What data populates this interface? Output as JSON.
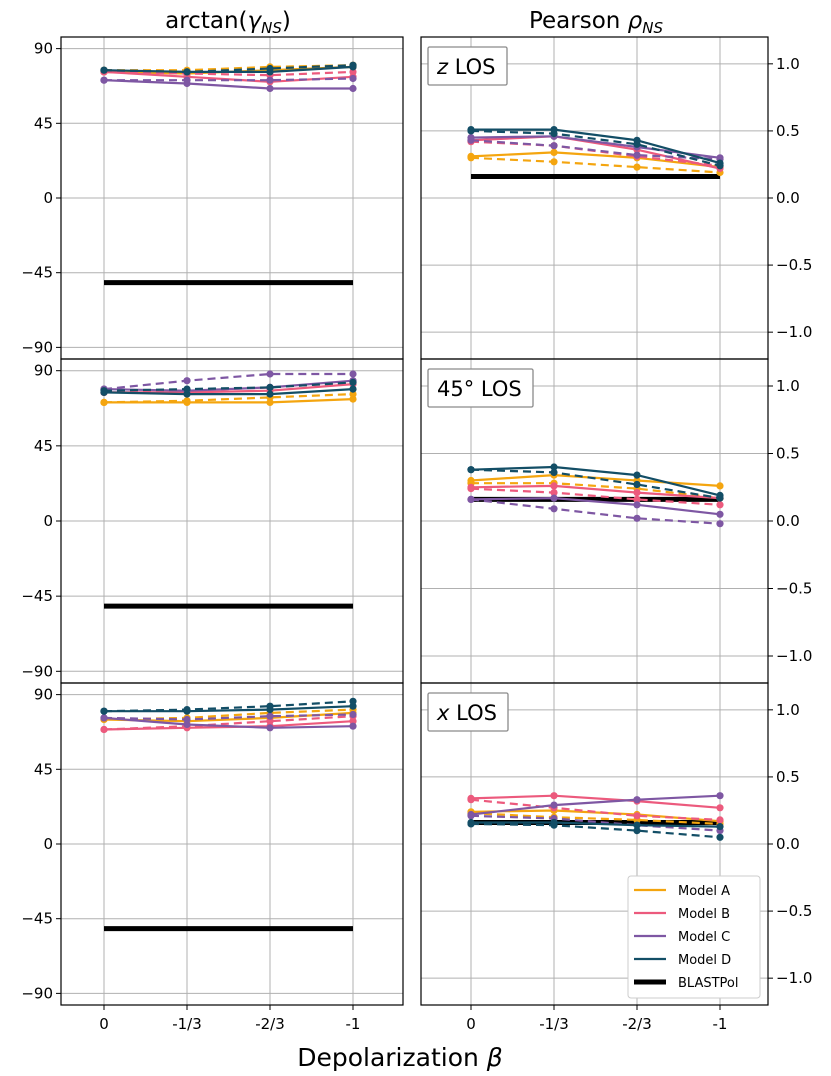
{
  "column_titles": [
    "arctan(γ_NS)",
    "Pearson ρ_NS"
  ],
  "x_axis_title": "Depolarization β",
  "x_tick_labels": [
    "0",
    "-1/3",
    "-2/3",
    "-1"
  ],
  "legend": [
    {
      "label": "Model A",
      "color": "#f4a50f"
    },
    {
      "label": "Model B",
      "color": "#ec5a7d"
    },
    {
      "label": "Model C",
      "color": "#7e57a3"
    },
    {
      "label": "Model D",
      "color": "#134e66"
    },
    {
      "label": "BLASTPol",
      "color": "#000000"
    }
  ],
  "chart_data": [
    {
      "type": "line",
      "title": "arctan(γ_NS)",
      "los": "z LOS",
      "x": [
        "0",
        "-1/3",
        "-2/3",
        "-1"
      ],
      "ylim": [
        -97,
        97
      ],
      "yticks": [
        -90,
        -45,
        0,
        45,
        90
      ],
      "ytick_labels": [
        "−90",
        "−45",
        "0",
        "45",
        "90"
      ],
      "grid": true,
      "blastpol": -51,
      "series": [
        {
          "name": "Model A",
          "style": "solid",
          "values": [
            76,
            75,
            77,
            79
          ]
        },
        {
          "name": "Model A",
          "style": "dashed",
          "values": [
            77,
            77,
            79,
            80
          ]
        },
        {
          "name": "Model B",
          "style": "solid",
          "values": [
            76,
            73,
            70,
            73
          ]
        },
        {
          "name": "Model B",
          "style": "dashed",
          "values": [
            76,
            75,
            74,
            76
          ]
        },
        {
          "name": "Model C",
          "style": "solid",
          "values": [
            71,
            69,
            66,
            66
          ]
        },
        {
          "name": "Model C",
          "style": "dashed",
          "values": [
            71,
            71,
            71,
            72
          ]
        },
        {
          "name": "Model D",
          "style": "solid",
          "values": [
            77,
            76,
            76,
            79
          ]
        },
        {
          "name": "Model D",
          "style": "dashed",
          "values": [
            77,
            76,
            78,
            80
          ]
        }
      ]
    },
    {
      "type": "line",
      "title": "Pearson ρ_NS",
      "los": "z LOS",
      "x": [
        "0",
        "-1/3",
        "-2/3",
        "-1"
      ],
      "ylim": [
        -1.2,
        1.2
      ],
      "yticks": [
        -1.0,
        -0.5,
        0.0,
        0.5,
        1.0
      ],
      "ytick_labels": [
        "−1.0",
        "−0.5",
        "0.0",
        "0.5",
        "1.0"
      ],
      "grid": true,
      "blastpol": 0.16,
      "series": [
        {
          "name": "Model A",
          "style": "solid",
          "values": [
            0.31,
            0.34,
            0.3,
            0.23
          ]
        },
        {
          "name": "Model A",
          "style": "dashed",
          "values": [
            0.3,
            0.27,
            0.23,
            0.19
          ]
        },
        {
          "name": "Model B",
          "style": "solid",
          "values": [
            0.43,
            0.46,
            0.36,
            0.22
          ]
        },
        {
          "name": "Model B",
          "style": "dashed",
          "values": [
            0.42,
            0.39,
            0.31,
            0.24
          ]
        },
        {
          "name": "Model C",
          "style": "solid",
          "values": [
            0.45,
            0.46,
            0.38,
            0.3
          ]
        },
        {
          "name": "Model C",
          "style": "dashed",
          "values": [
            0.43,
            0.39,
            0.32,
            0.29
          ]
        },
        {
          "name": "Model D",
          "style": "solid",
          "values": [
            0.51,
            0.51,
            0.43,
            0.26
          ]
        },
        {
          "name": "Model D",
          "style": "dashed",
          "values": [
            0.5,
            0.48,
            0.4,
            0.24
          ]
        }
      ]
    },
    {
      "type": "line",
      "title": "arctan(γ_NS)",
      "los": "45° LOS",
      "x": [
        "0",
        "-1/3",
        "-2/3",
        "-1"
      ],
      "ylim": [
        -97,
        97
      ],
      "yticks": [
        -90,
        -45,
        0,
        45,
        90
      ],
      "ytick_labels": [
        "−90",
        "−45",
        "0",
        "45",
        "90"
      ],
      "grid": true,
      "blastpol": -51,
      "series": [
        {
          "name": "Model A",
          "style": "solid",
          "values": [
            71,
            71,
            71,
            73
          ]
        },
        {
          "name": "Model A",
          "style": "dashed",
          "values": [
            71,
            72,
            74,
            76
          ]
        },
        {
          "name": "Model B",
          "style": "solid",
          "values": [
            77,
            77,
            78,
            82
          ]
        },
        {
          "name": "Model B",
          "style": "dashed",
          "values": [
            77,
            78,
            80,
            83
          ]
        },
        {
          "name": "Model C",
          "style": "solid",
          "values": [
            79,
            78,
            80,
            84
          ]
        },
        {
          "name": "Model C",
          "style": "dashed",
          "values": [
            79,
            84,
            88,
            88
          ]
        },
        {
          "name": "Model D",
          "style": "solid",
          "values": [
            77,
            76,
            76,
            79
          ]
        },
        {
          "name": "Model D",
          "style": "dashed",
          "values": [
            78,
            79,
            80,
            83
          ]
        }
      ]
    },
    {
      "type": "line",
      "title": "Pearson ρ_NS",
      "los": "45° LOS",
      "x": [
        "0",
        "-1/3",
        "-2/3",
        "-1"
      ],
      "ylim": [
        -1.2,
        1.2
      ],
      "yticks": [
        -1.0,
        -0.5,
        0.0,
        0.5,
        1.0
      ],
      "ytick_labels": [
        "−1.0",
        "−0.5",
        "0.0",
        "0.5",
        "1.0"
      ],
      "grid": true,
      "blastpol": 0.16,
      "series": [
        {
          "name": "Model A",
          "style": "solid",
          "values": [
            0.3,
            0.34,
            0.3,
            0.26
          ]
        },
        {
          "name": "Model A",
          "style": "dashed",
          "values": [
            0.28,
            0.28,
            0.24,
            0.17
          ]
        },
        {
          "name": "Model B",
          "style": "solid",
          "values": [
            0.25,
            0.26,
            0.21,
            0.17
          ]
        },
        {
          "name": "Model B",
          "style": "dashed",
          "values": [
            0.24,
            0.21,
            0.16,
            0.12
          ]
        },
        {
          "name": "Model C",
          "style": "solid",
          "values": [
            0.16,
            0.17,
            0.12,
            0.05
          ]
        },
        {
          "name": "Model C",
          "style": "dashed",
          "values": [
            0.16,
            0.09,
            0.02,
            -0.02
          ]
        },
        {
          "name": "Model D",
          "style": "solid",
          "values": [
            0.38,
            0.4,
            0.34,
            0.19
          ]
        },
        {
          "name": "Model D",
          "style": "dashed",
          "values": [
            0.38,
            0.36,
            0.27,
            0.17
          ]
        }
      ]
    },
    {
      "type": "line",
      "title": "arctan(γ_NS)",
      "los": "x LOS",
      "x": [
        "0",
        "-1/3",
        "-2/3",
        "-1"
      ],
      "ylim": [
        -97,
        97
      ],
      "yticks": [
        -90,
        -45,
        0,
        45,
        90
      ],
      "ytick_labels": [
        "−90",
        "−45",
        "0",
        "45",
        "90"
      ],
      "grid": true,
      "blastpol": -51,
      "series": [
        {
          "name": "Model A",
          "style": "solid",
          "values": [
            75,
            74,
            76,
            79
          ]
        },
        {
          "name": "Model A",
          "style": "dashed",
          "values": [
            75,
            76,
            79,
            81
          ]
        },
        {
          "name": "Model B",
          "style": "solid",
          "values": [
            69,
            70,
            71,
            74
          ]
        },
        {
          "name": "Model B",
          "style": "dashed",
          "values": [
            69,
            71,
            74,
            77
          ]
        },
        {
          "name": "Model C",
          "style": "solid",
          "values": [
            76,
            72,
            70,
            71
          ]
        },
        {
          "name": "Model C",
          "style": "dashed",
          "values": [
            76,
            75,
            77,
            78
          ]
        },
        {
          "name": "Model D",
          "style": "solid",
          "values": [
            80,
            80,
            81,
            83
          ]
        },
        {
          "name": "Model D",
          "style": "dashed",
          "values": [
            80,
            81,
            83,
            86
          ]
        }
      ]
    },
    {
      "type": "line",
      "title": "Pearson ρ_NS",
      "los": "x LOS",
      "x": [
        "0",
        "-1/3",
        "-2/3",
        "-1"
      ],
      "ylim": [
        -1.2,
        1.2
      ],
      "yticks": [
        -1.0,
        -0.5,
        0.0,
        0.5,
        1.0
      ],
      "ytick_labels": [
        "−1.0",
        "−0.5",
        "0.0",
        "0.5",
        "1.0"
      ],
      "grid": true,
      "blastpol": 0.16,
      "series": [
        {
          "name": "Model A",
          "style": "solid",
          "values": [
            0.24,
            0.25,
            0.22,
            0.17
          ]
        },
        {
          "name": "Model A",
          "style": "dashed",
          "values": [
            0.23,
            0.2,
            0.18,
            0.15
          ]
        },
        {
          "name": "Model B",
          "style": "solid",
          "values": [
            0.34,
            0.36,
            0.32,
            0.27
          ]
        },
        {
          "name": "Model B",
          "style": "dashed",
          "values": [
            0.33,
            0.27,
            0.21,
            0.18
          ]
        },
        {
          "name": "Model C",
          "style": "solid",
          "values": [
            0.22,
            0.29,
            0.33,
            0.36
          ]
        },
        {
          "name": "Model C",
          "style": "dashed",
          "values": [
            0.21,
            0.19,
            0.14,
            0.1
          ]
        },
        {
          "name": "Model D",
          "style": "solid",
          "values": [
            0.16,
            0.16,
            0.14,
            0.13
          ]
        },
        {
          "name": "Model D",
          "style": "dashed",
          "values": [
            0.15,
            0.14,
            0.1,
            0.05
          ]
        }
      ]
    }
  ]
}
